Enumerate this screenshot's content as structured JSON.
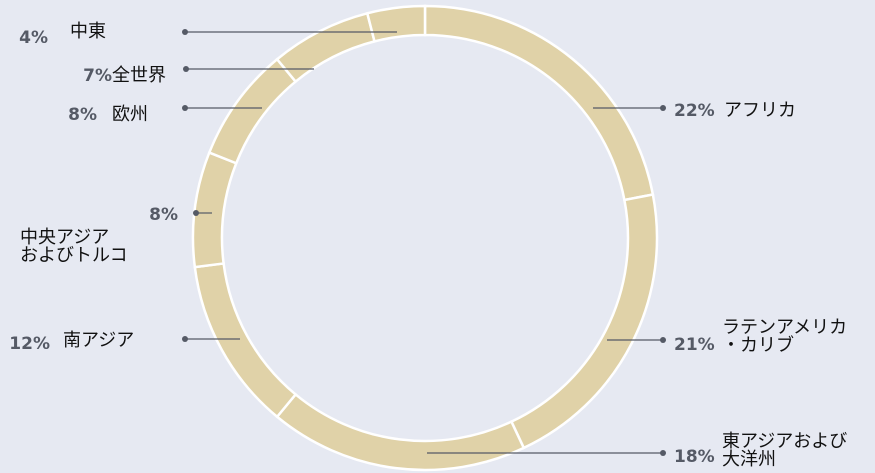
{
  "chart_data": {
    "type": "pie",
    "donut": true,
    "categories": [
      "アフリカ",
      "ラテンアメリカ・カリブ",
      "東アジアおよび大洋州",
      "南アジア",
      "中央アジアおよびトルコ",
      "欧州",
      "全世界",
      "中東"
    ],
    "label_lines": [
      [
        "アフリカ"
      ],
      [
        "ラテンアメリカ",
        "・カリブ"
      ],
      [
        "東アジアおよび",
        "大洋州"
      ],
      [
        "南アジア"
      ],
      [
        "中央アジア",
        "およびトルコ"
      ],
      [
        "欧州"
      ],
      [
        "全世界"
      ],
      [
        "中東"
      ]
    ],
    "values": [
      22,
      21,
      18,
      12,
      8,
      8,
      7,
      4
    ],
    "value_labels": [
      "22%",
      "21%",
      "18%",
      "12%",
      "8%",
      "8%",
      "7%",
      "4%"
    ],
    "colors": {
      "segment": "#e0d2a8",
      "background": "#e6e9f2",
      "leader": "#555a66",
      "separator": "#ffffff"
    },
    "start": "12 o'clock",
    "direction": "clockwise",
    "legend": "none"
  }
}
